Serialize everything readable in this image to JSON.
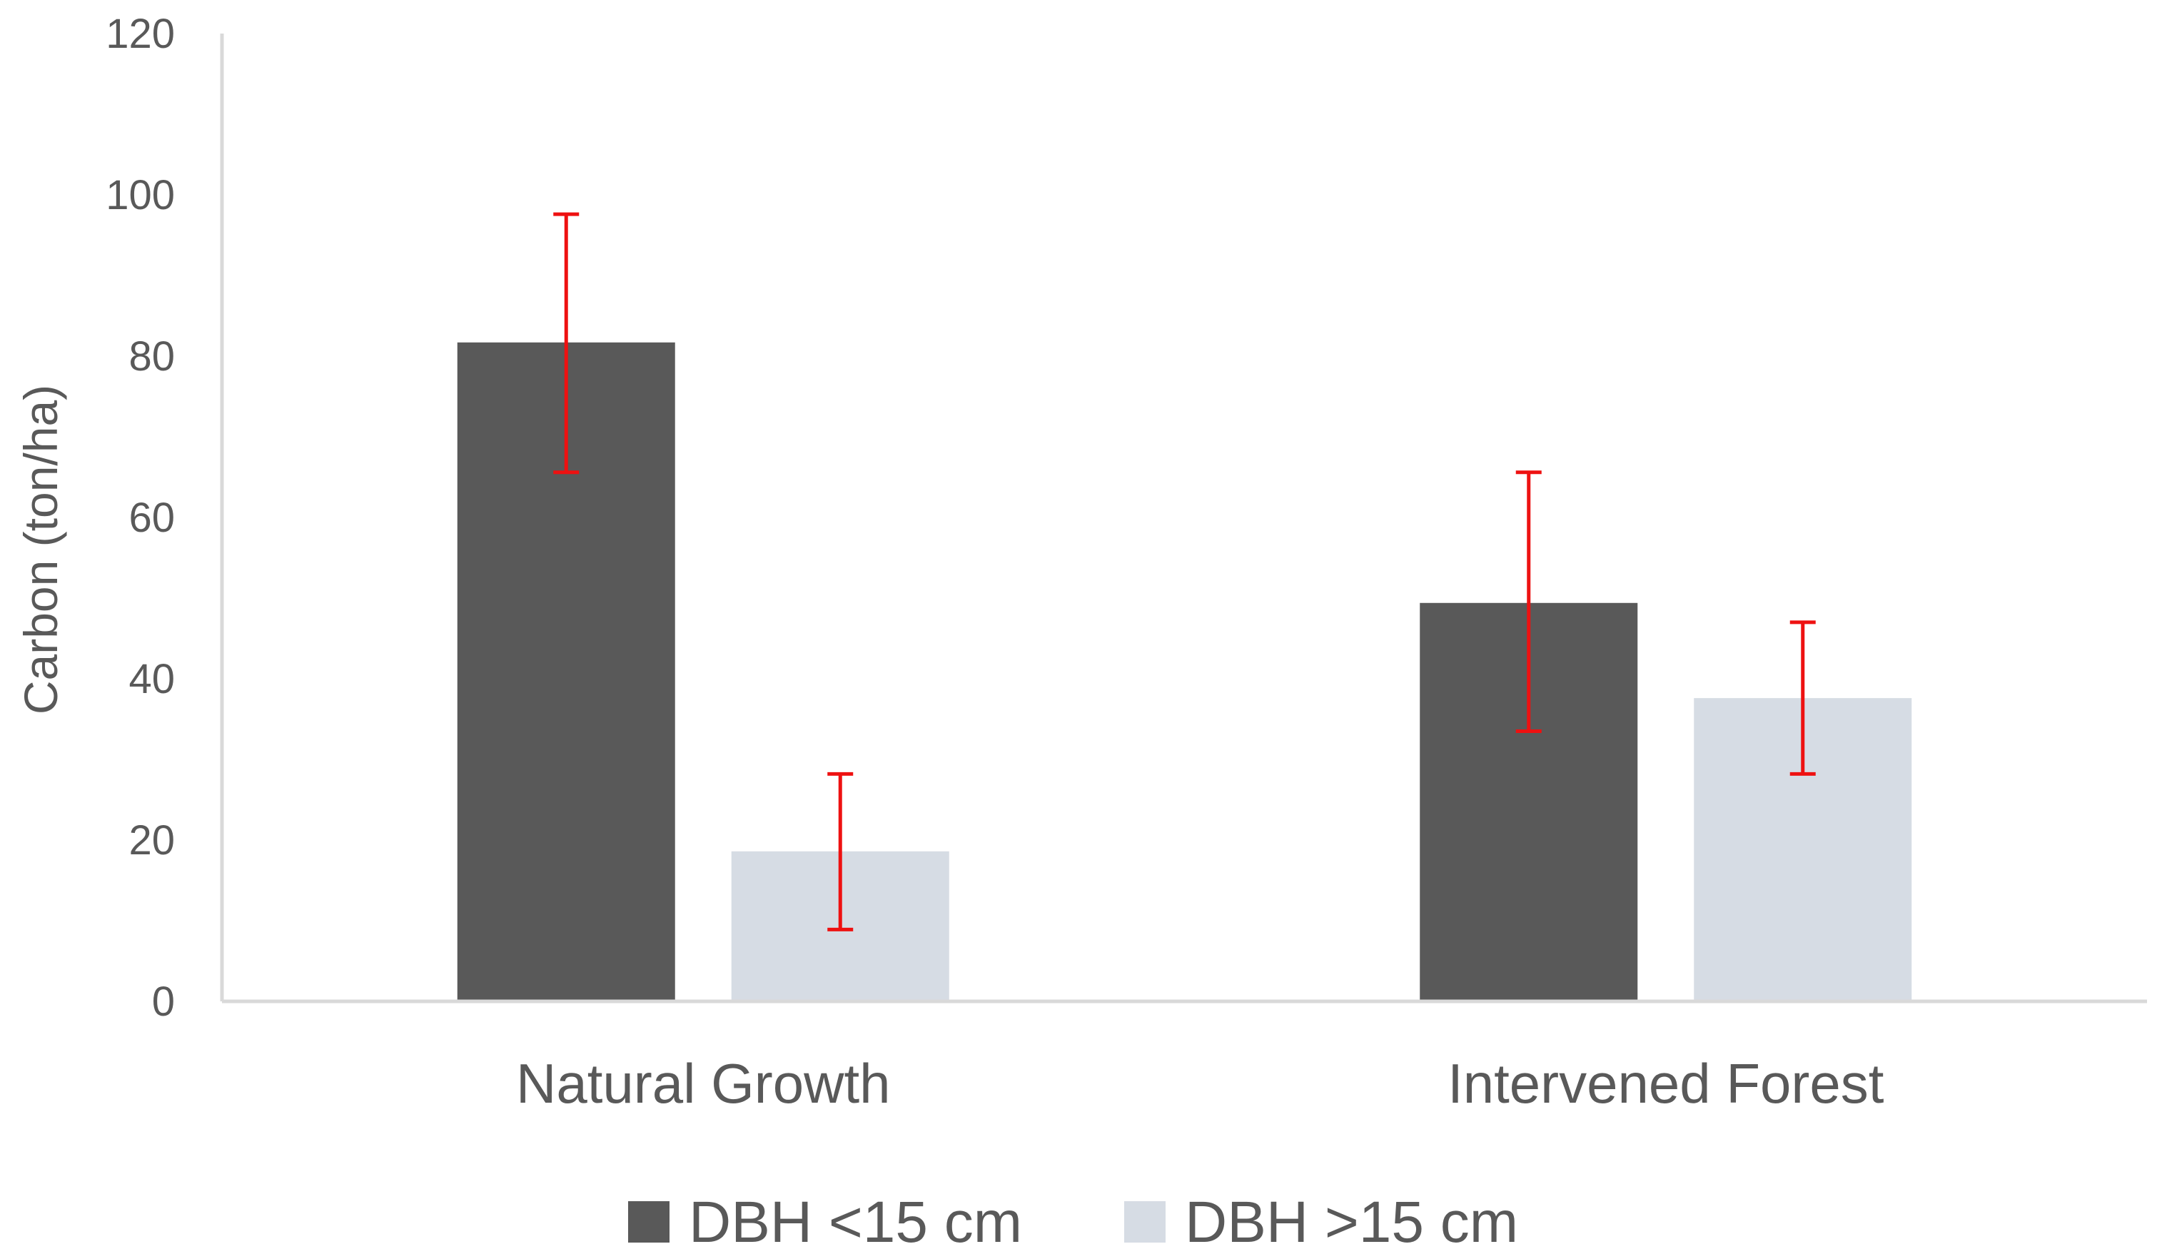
{
  "chart_data": {
    "type": "bar",
    "title": "",
    "xlabel": "",
    "ylabel": "Carbon (ton/ha)",
    "ylim": [
      0,
      120
    ],
    "yticks": [
      0,
      20,
      40,
      60,
      80,
      100,
      120
    ],
    "ytick_labels": [
      "0",
      "20",
      "40",
      "60",
      "80",
      "100",
      "120"
    ],
    "categories": [
      "Natural Growth",
      "Intervened Forest"
    ],
    "series": [
      {
        "name": "DBH <15 cm",
        "color": "#595959",
        "values": [
          81.7,
          49.4
        ],
        "error_low": [
          65.6,
          33.5
        ],
        "error_high": [
          97.6,
          65.6
        ]
      },
      {
        "name": "DBH >15 cm",
        "color": "#d6dce4",
        "values": [
          18.6,
          37.6
        ],
        "error_low": [
          8.9,
          28.2
        ],
        "error_high": [
          28.2,
          47.0
        ]
      }
    ],
    "error_bar_color": "#ee1111",
    "grid": false,
    "legend": "bottom"
  }
}
